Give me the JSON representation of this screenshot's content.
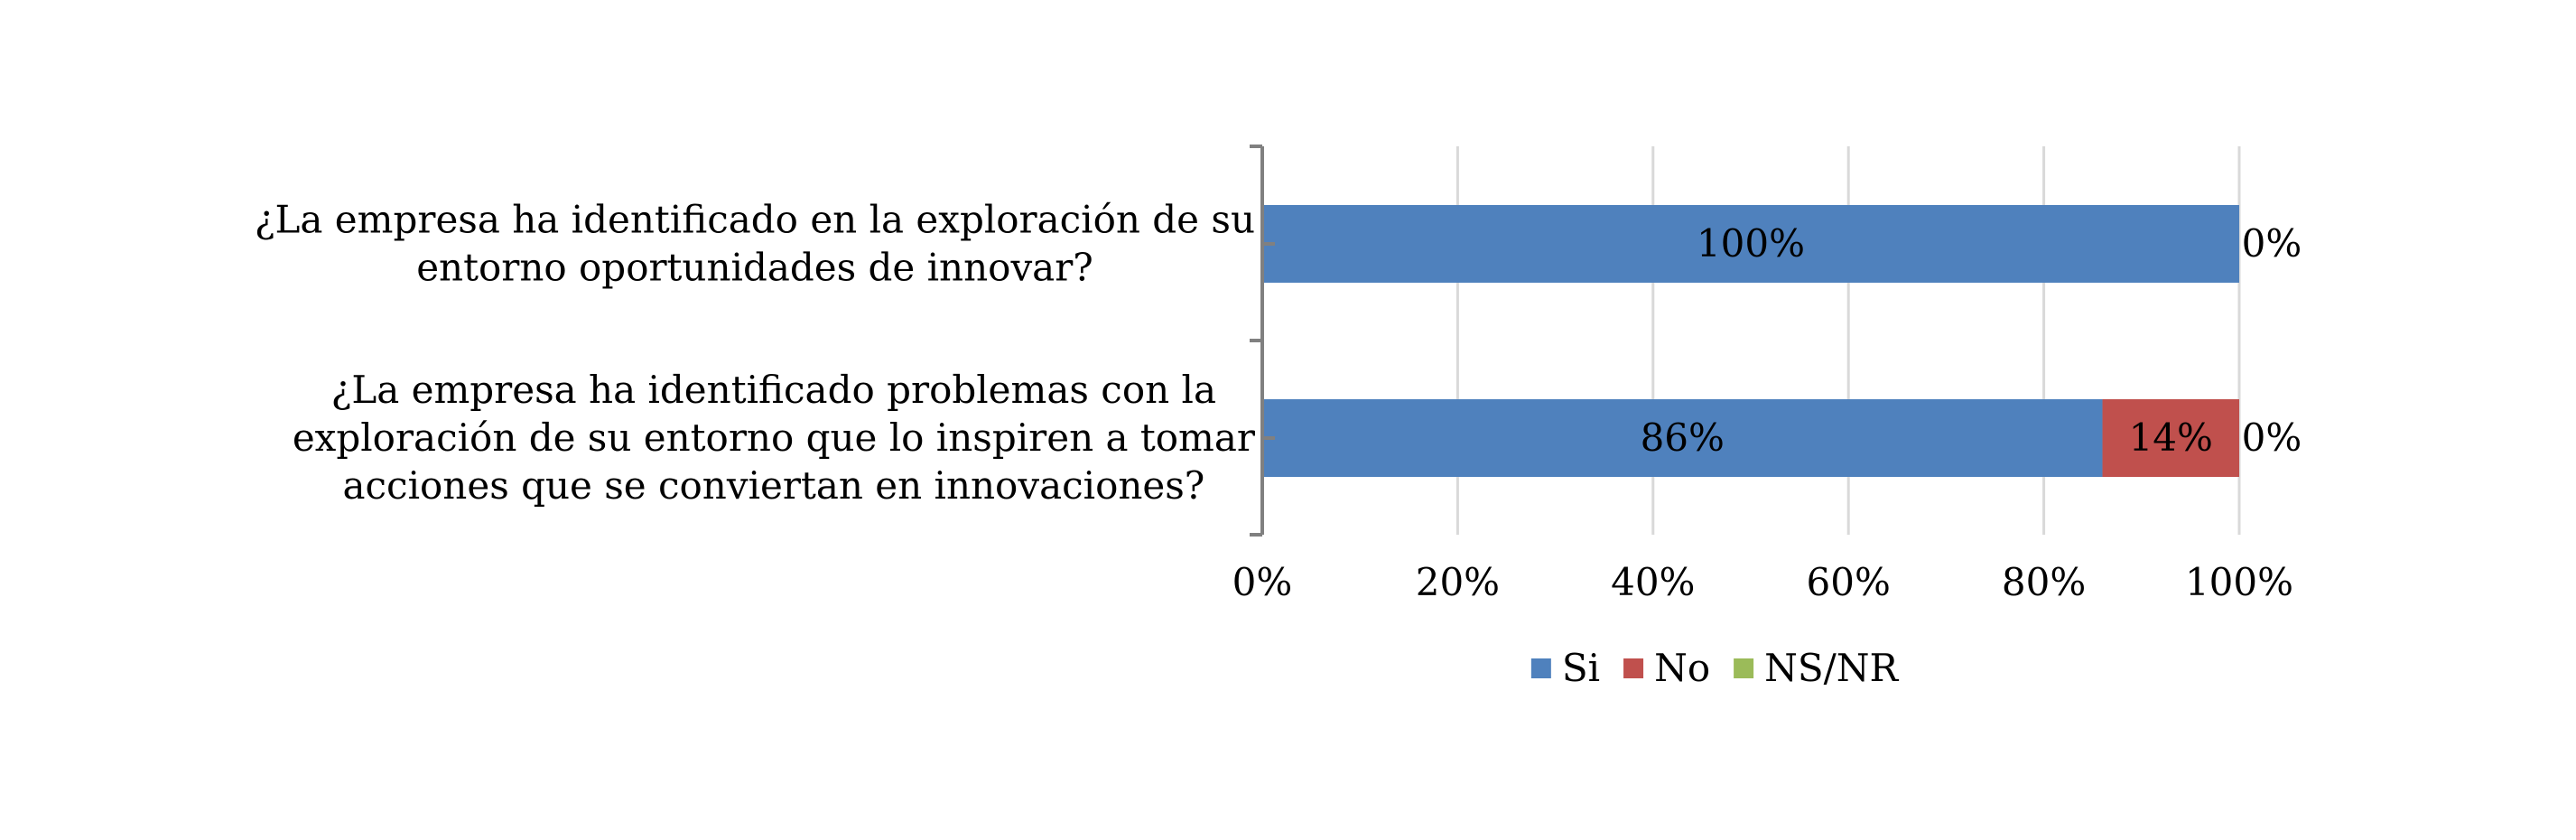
{
  "chart_data": {
    "type": "bar",
    "orientation": "horizontal",
    "stacked": "percent",
    "title": "",
    "xlabel": "",
    "ylabel": "",
    "xlim": [
      0,
      100
    ],
    "x_ticks": [
      "0%",
      "20%",
      "40%",
      "60%",
      "80%",
      "100%"
    ],
    "x_tick_values": [
      0,
      20,
      40,
      60,
      80,
      100
    ],
    "grid": true,
    "legend_position": "bottom",
    "categories": [
      {
        "lines": [
          "¿La empresa ha identificado en la exploración de su",
          "entorno oportunidades de innovar?"
        ]
      },
      {
        "lines": [
          "¿La empresa ha identificado problemas con la",
          "exploración de su entorno que lo inspiren a tomar",
          "acciones que se conviertan en innovaciones?"
        ]
      }
    ],
    "series": [
      {
        "name": "Si",
        "color": "#4F81BD",
        "values": [
          100,
          86
        ],
        "labels": [
          "100%",
          "86%"
        ]
      },
      {
        "name": "No",
        "color": "#C0504D",
        "values": [
          0,
          14
        ],
        "labels": [
          "",
          "14%"
        ]
      },
      {
        "name": "NS/NR",
        "color": "#9BBB59",
        "values": [
          0,
          0
        ],
        "labels": [
          "0%",
          "0%"
        ]
      }
    ]
  }
}
